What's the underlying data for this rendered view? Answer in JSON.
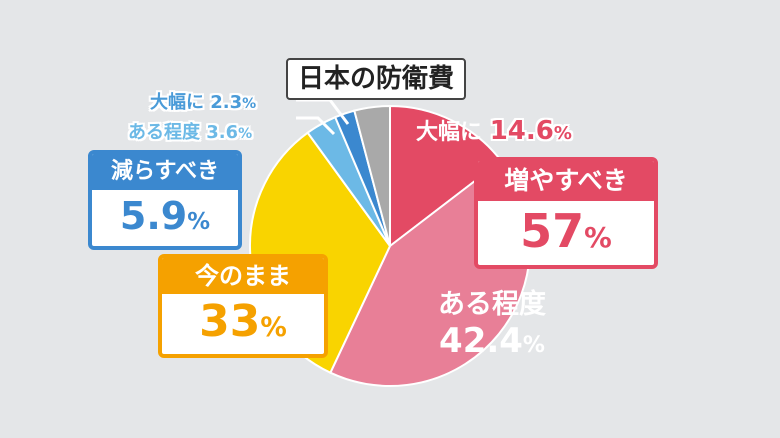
{
  "chart_data": {
    "type": "pie",
    "title": "日本の防衛費",
    "slices": [
      {
        "group": "増やすべき",
        "label": "大幅に",
        "value": 14.6,
        "color": "#e34a64"
      },
      {
        "group": "増やすべき",
        "label": "ある程度",
        "value": 42.4,
        "color": "#e87f97"
      },
      {
        "group": "今のまま",
        "label": "今のまま",
        "value": 33,
        "color": "#f9d400"
      },
      {
        "group": "減らすべき",
        "label": "ある程度",
        "value": 3.6,
        "color": "#6cb9e6"
      },
      {
        "group": "減らすべき",
        "label": "大幅に",
        "value": 2.3,
        "color": "#3b88cf"
      },
      {
        "group": "その他",
        "label": "",
        "value": 4.1,
        "color": "#a9a9a9"
      }
    ],
    "groups": {
      "increase": {
        "label": "増やすべき",
        "value": "57",
        "unit": "%",
        "color": "#e34a64"
      },
      "same": {
        "label": "今のまま",
        "value": "33",
        "unit": "%",
        "color": "#f5a100"
      },
      "decrease": {
        "label": "減らすべき",
        "value": "5.9",
        "unit": "%",
        "color": "#3b88cf"
      }
    },
    "slice_labels": {
      "inc_large_name": "大幅に",
      "inc_large_val": "14.6",
      "inc_large_unit": "%",
      "inc_some_name": "ある程度",
      "inc_some_val": "42.4",
      "inc_some_unit": "%",
      "dec_large_name": "大幅に",
      "dec_large_val": "2.3",
      "dec_large_unit": "%",
      "dec_some_name": "ある程度",
      "dec_some_val": "3.6",
      "dec_some_unit": "%"
    }
  }
}
